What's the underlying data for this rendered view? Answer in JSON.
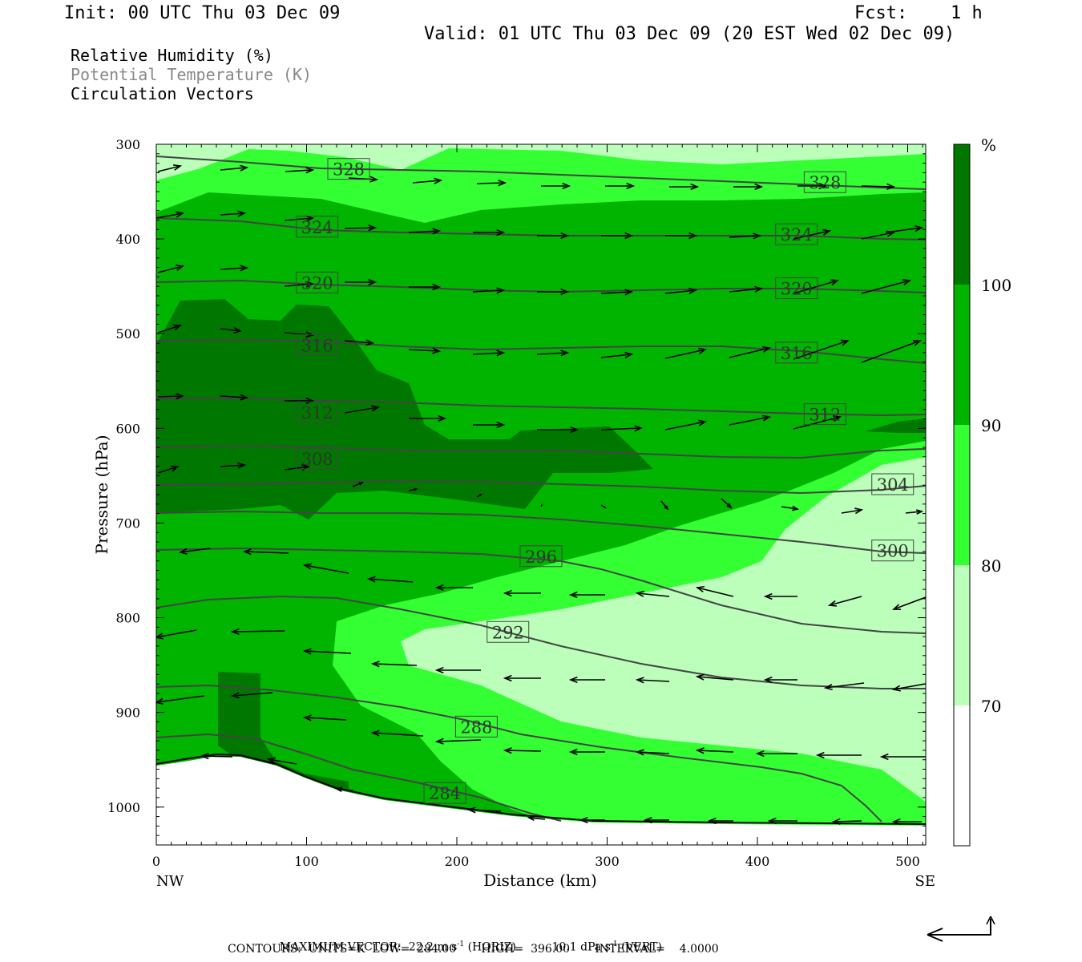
{
  "header": {
    "init": "Init: 00 UTC Thu 03 Dec 09",
    "fcst_label": "Fcst:",
    "fcst_value": "1 h",
    "valid": "Valid: 01 UTC Thu 03 Dec 09 (20 EST Wed 02 Dec 09)"
  },
  "fields": {
    "rh": "Relative Humidity (%)",
    "theta": "Potential Temperature (K)",
    "vectors": "Circulation Vectors"
  },
  "colors": {
    "rh_below_70": "#ffffff",
    "rh_70_80": "#bbffbb",
    "rh_80_90": "#33ff33",
    "rh_90_100": "#00b400",
    "rh_100_plus": "#007800",
    "theta_line": "#444444"
  },
  "footer": {
    "max_vector_label": "MAXIMUM VECTOR:",
    "max_vector_h": "22.2 m s",
    "max_vector_h_sup": "-1",
    "max_vector_h_tail": " (HORIZ)",
    "max_vector_v": "10.1 dPa s",
    "max_vector_v_sup": "-1",
    "max_vector_v_tail": " (VERT)",
    "contours": "CONTOURS:  UNITS=K  LOW=  284.00       HIGH=  396.00       INTERVAL=    4.0000"
  },
  "chart_data": {
    "type": "cross-section",
    "xlabel": "Distance (km)",
    "ylabel": "Pressure (hPa)",
    "x_start_label": "NW",
    "x_end_label": "SE",
    "xlim": [
      0,
      512
    ],
    "ylim": [
      300,
      1040
    ],
    "x_ticks": [
      0,
      100,
      200,
      300,
      400,
      500
    ],
    "y_ticks": [
      300,
      400,
      500,
      600,
      700,
      800,
      900,
      1000
    ],
    "colorbar": {
      "unit": "%",
      "ticks": [
        70,
        80,
        90,
        100
      ]
    },
    "theta_labels": [
      {
        "value": "328",
        "x": 128,
        "p": 326
      },
      {
        "value": "328",
        "x": 445,
        "p": 340
      },
      {
        "value": "324",
        "x": 107,
        "p": 387
      },
      {
        "value": "324",
        "x": 426,
        "p": 395
      },
      {
        "value": "320",
        "x": 107,
        "p": 446
      },
      {
        "value": "320",
        "x": 426,
        "p": 452
      },
      {
        "value": "316",
        "x": 107,
        "p": 512
      },
      {
        "value": "316",
        "x": 426,
        "p": 520
      },
      {
        "value": "312",
        "x": 107,
        "p": 583
      },
      {
        "value": "312",
        "x": 445,
        "p": 585
      },
      {
        "value": "308",
        "x": 107,
        "p": 632
      },
      {
        "value": "304",
        "x": 490,
        "p": 659
      },
      {
        "value": "300",
        "x": 490,
        "p": 729
      },
      {
        "value": "296",
        "x": 256,
        "p": 735
      },
      {
        "value": "292",
        "x": 234,
        "p": 815
      },
      {
        "value": "288",
        "x": 213,
        "p": 915
      },
      {
        "value": "284",
        "x": 192,
        "p": 985
      }
    ]
  }
}
